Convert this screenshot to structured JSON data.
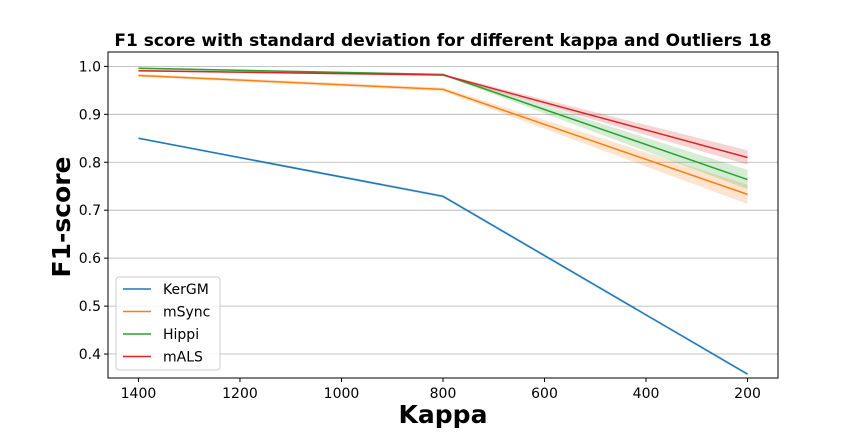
{
  "chart_data": {
    "type": "line",
    "title": "F1 score with standard deviation for different kappa and Outliers 18",
    "xlabel": "Kappa",
    "ylabel": "F1-score",
    "x": [
      1400,
      800,
      200
    ],
    "xlim": [
      1460,
      140
    ],
    "ylim": [
      0.35,
      1.03
    ],
    "x_ticks": [
      1400,
      1200,
      1000,
      800,
      600,
      400,
      200
    ],
    "y_ticks": [
      0.4,
      0.5,
      0.6,
      0.7,
      0.8,
      0.9,
      1.0
    ],
    "x_tick_labels": [
      "1400",
      "1200",
      "1000",
      "800",
      "600",
      "400",
      "200"
    ],
    "y_tick_labels": [
      "0.4",
      "0.5",
      "0.6",
      "0.7",
      "0.8",
      "0.9",
      "1.0"
    ],
    "grid": "y",
    "legend_position": "lower-left",
    "series": [
      {
        "name": "KerGM",
        "values": [
          0.85,
          0.729,
          0.358
        ],
        "std": [
          0.002,
          0.003,
          0.003
        ],
        "color": "#1f77b4"
      },
      {
        "name": "mSync",
        "values": [
          0.981,
          0.952,
          0.733
        ],
        "std": [
          0.003,
          0.004,
          0.02
        ],
        "color": "#ff7f0e"
      },
      {
        "name": "Hippi",
        "values": [
          0.996,
          0.983,
          0.764
        ],
        "std": [
          0.002,
          0.002,
          0.02
        ],
        "color": "#2ca02c"
      },
      {
        "name": "mALS",
        "values": [
          0.991,
          0.982,
          0.81
        ],
        "std": [
          0.002,
          0.002,
          0.015
        ],
        "color": "#d62728"
      }
    ]
  }
}
